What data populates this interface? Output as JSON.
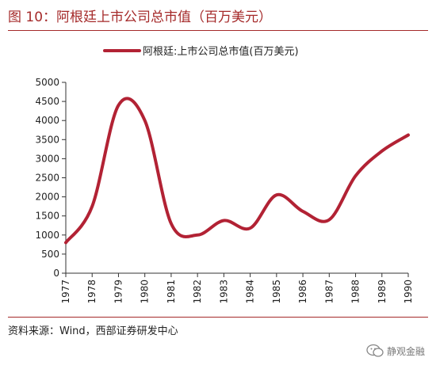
{
  "figure": {
    "title": "图 10：阿根廷上市公司总市值（百万美元）",
    "source": "资料来源：Wind，西部证券研发中心",
    "watermark": "静观金融"
  },
  "colors": {
    "accent": "#a52a2a",
    "line": "#b22234"
  },
  "chart_data": {
    "type": "line",
    "title": "",
    "xlabel": "",
    "ylabel": "",
    "ylim": [
      0,
      5000
    ],
    "yticks": [
      0,
      500,
      1000,
      1500,
      2000,
      2500,
      3000,
      3500,
      4000,
      4500,
      5000
    ],
    "x": [
      "1977",
      "1978",
      "1979",
      "1980",
      "1981",
      "1982",
      "1983",
      "1984",
      "1985",
      "1986",
      "1987",
      "1988",
      "1989",
      "1990"
    ],
    "series": [
      {
        "name": "阿根廷:上市公司总市值(百万美元)",
        "values": [
          800,
          1750,
          4400,
          4000,
          1300,
          1000,
          1380,
          1180,
          2050,
          1620,
          1400,
          2550,
          3200,
          3620
        ]
      }
    ],
    "legend_position": "top",
    "grid": false
  }
}
